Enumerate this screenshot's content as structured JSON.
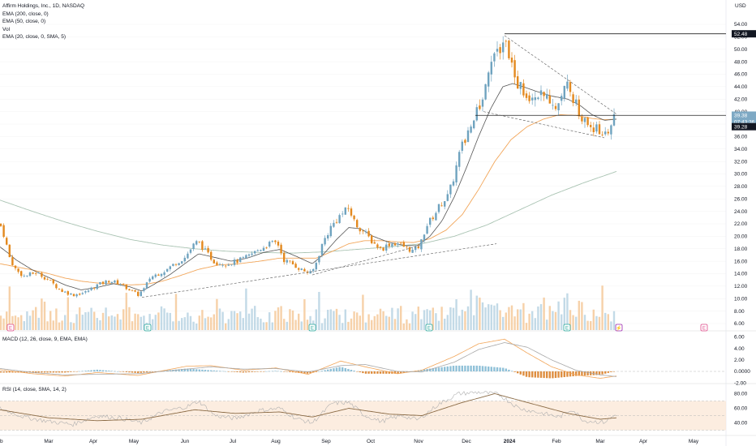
{
  "header": {
    "title": "Affirm Holdings, Inc., 1D, NASDAQ",
    "currency": "USD",
    "indicators": [
      "EMA (200, close, 0)",
      "EMA (50, close, 0)",
      "Vol",
      "EMA (20, close, 0, SMA, 5)"
    ]
  },
  "panes": {
    "macd_label": "MACD (12, 26, close, 9, EMA, EMA)",
    "rsi_label": "RSI (14, close, SMA, 14, 2)"
  },
  "price_tags": {
    "last": "39.38",
    "countdown": "07:43:36",
    "secondary": "39.28",
    "line": "52.48"
  },
  "colors": {
    "up": "#6fa3bf",
    "down": "#e3891f",
    "ema20": "#555555",
    "ema50": "#f2a65a",
    "ema200": "#a9c3b2",
    "rsi_band": "#fbe7d6",
    "rsi_line": "#b0b0b0",
    "rsi_ma": "#8a6a44",
    "macd_line": "#f2a65a",
    "macd_signal": "#a8a8a8"
  },
  "chart_data": {
    "type": "candlestick",
    "title": "Affirm Holdings, Inc., 1D, NASDAQ",
    "y_ticks": [
      "54.00",
      "52.00",
      "50.00",
      "48.00",
      "46.00",
      "44.00",
      "42.00",
      "40.00",
      "38.00",
      "36.00",
      "34.00",
      "32.00",
      "30.00",
      "28.00",
      "26.00",
      "24.00",
      "22.00",
      "20.00",
      "18.00",
      "16.00",
      "14.00",
      "12.00",
      "10.00",
      "8.00",
      "6.00"
    ],
    "macd_ticks": [
      "6.00",
      "4.00",
      "2.00",
      "0.0000",
      "-2.00"
    ],
    "rsi_ticks": [
      "80.00",
      "60.00",
      "40.00"
    ],
    "x_ticks": [
      "Feb",
      "Mar",
      "Apr",
      "May",
      "Jun",
      "Jul",
      "Aug",
      "Sep",
      "Oct",
      "Nov",
      "Dec",
      "2024",
      "Feb",
      "Mar",
      "Apr",
      "May"
    ],
    "ylim": [
      4.5,
      55
    ],
    "price_anchors": [
      {
        "x": 0,
        "p": 22.0
      },
      {
        "x": 5,
        "p": 20.2
      },
      {
        "x": 12,
        "p": 16.5
      },
      {
        "x": 20,
        "p": 14.5
      },
      {
        "x": 30,
        "p": 13.6
      },
      {
        "x": 45,
        "p": 14.2
      },
      {
        "x": 60,
        "p": 13.0
      },
      {
        "x": 75,
        "p": 11.3
      },
      {
        "x": 90,
        "p": 10.6
      },
      {
        "x": 105,
        "p": 11.0
      },
      {
        "x": 120,
        "p": 12.2
      },
      {
        "x": 135,
        "p": 12.9
      },
      {
        "x": 150,
        "p": 12.3
      },
      {
        "x": 160,
        "p": 11.4
      },
      {
        "x": 170,
        "p": 10.6
      },
      {
        "x": 178,
        "p": 11.6
      },
      {
        "x": 185,
        "p": 13.4
      },
      {
        "x": 195,
        "p": 14.0
      },
      {
        "x": 205,
        "p": 14.6
      },
      {
        "x": 215,
        "p": 15.6
      },
      {
        "x": 228,
        "p": 16.6
      },
      {
        "x": 238,
        "p": 18.5
      },
      {
        "x": 244,
        "p": 19.2
      },
      {
        "x": 255,
        "p": 17.3
      },
      {
        "x": 265,
        "p": 15.8
      },
      {
        "x": 280,
        "p": 15.6
      },
      {
        "x": 292,
        "p": 16.0
      },
      {
        "x": 305,
        "p": 16.7
      },
      {
        "x": 318,
        "p": 17.8
      },
      {
        "x": 332,
        "p": 18.8
      },
      {
        "x": 342,
        "p": 19.0
      },
      {
        "x": 350,
        "p": 16.2
      },
      {
        "x": 360,
        "p": 15.6
      },
      {
        "x": 372,
        "p": 14.6
      },
      {
        "x": 384,
        "p": 14.0
      },
      {
        "x": 390,
        "p": 15.8
      },
      {
        "x": 398,
        "p": 19.0
      },
      {
        "x": 408,
        "p": 21.5
      },
      {
        "x": 418,
        "p": 23.2
      },
      {
        "x": 430,
        "p": 24.5
      },
      {
        "x": 438,
        "p": 22.0
      },
      {
        "x": 448,
        "p": 20.8
      },
      {
        "x": 460,
        "p": 19.0
      },
      {
        "x": 470,
        "p": 17.9
      },
      {
        "x": 480,
        "p": 18.8
      },
      {
        "x": 490,
        "p": 18.9
      },
      {
        "x": 500,
        "p": 18.2
      },
      {
        "x": 510,
        "p": 17.6
      },
      {
        "x": 518,
        "p": 18.6
      },
      {
        "x": 525,
        "p": 21.5
      },
      {
        "x": 535,
        "p": 23.4
      },
      {
        "x": 545,
        "p": 25.5
      },
      {
        "x": 553,
        "p": 26.5
      },
      {
        "x": 560,
        "p": 29.8
      },
      {
        "x": 567,
        "p": 33.5
      },
      {
        "x": 573,
        "p": 35.5
      },
      {
        "x": 580,
        "p": 37.8
      },
      {
        "x": 586,
        "p": 40.0
      },
      {
        "x": 592,
        "p": 40.0
      },
      {
        "x": 598,
        "p": 44.0
      },
      {
        "x": 604,
        "p": 48.5
      },
      {
        "x": 610,
        "p": 49.8
      },
      {
        "x": 616,
        "p": 50.5
      },
      {
        "x": 622,
        "p": 51.5
      },
      {
        "x": 628,
        "p": 49.5
      },
      {
        "x": 634,
        "p": 45.5
      },
      {
        "x": 640,
        "p": 44.2
      },
      {
        "x": 648,
        "p": 43.0
      },
      {
        "x": 655,
        "p": 42.5
      },
      {
        "x": 662,
        "p": 43.5
      },
      {
        "x": 670,
        "p": 41.8
      },
      {
        "x": 678,
        "p": 42.3
      },
      {
        "x": 686,
        "p": 40.5
      },
      {
        "x": 694,
        "p": 43.5
      },
      {
        "x": 700,
        "p": 46.0
      },
      {
        "x": 706,
        "p": 42.5
      },
      {
        "x": 712,
        "p": 40.5
      },
      {
        "x": 720,
        "p": 38.5
      },
      {
        "x": 728,
        "p": 37.8
      },
      {
        "x": 736,
        "p": 37.0
      },
      {
        "x": 744,
        "p": 36.5
      },
      {
        "x": 752,
        "p": 37.5
      },
      {
        "x": 760,
        "p": 39.38
      }
    ],
    "ema20_anchors": [
      {
        "x": 0,
        "p": 18.3
      },
      {
        "x": 10,
        "p": 17.3
      },
      {
        "x": 20,
        "p": 16.2
      },
      {
        "x": 40,
        "p": 14.6
      },
      {
        "x": 60,
        "p": 13.4
      },
      {
        "x": 80,
        "p": 12.2
      },
      {
        "x": 100,
        "p": 11.4
      },
      {
        "x": 120,
        "p": 11.8
      },
      {
        "x": 140,
        "p": 12.4
      },
      {
        "x": 160,
        "p": 11.9
      },
      {
        "x": 175,
        "p": 11.2
      },
      {
        "x": 190,
        "p": 12.3
      },
      {
        "x": 210,
        "p": 13.9
      },
      {
        "x": 230,
        "p": 15.8
      },
      {
        "x": 245,
        "p": 17.2
      },
      {
        "x": 265,
        "p": 16.6
      },
      {
        "x": 285,
        "p": 16.0
      },
      {
        "x": 305,
        "p": 16.5
      },
      {
        "x": 325,
        "p": 17.4
      },
      {
        "x": 345,
        "p": 17.9
      },
      {
        "x": 365,
        "p": 16.8
      },
      {
        "x": 385,
        "p": 15.6
      },
      {
        "x": 398,
        "p": 17.0
      },
      {
        "x": 415,
        "p": 19.5
      },
      {
        "x": 430,
        "p": 21.4
      },
      {
        "x": 445,
        "p": 21.2
      },
      {
        "x": 460,
        "p": 20.0
      },
      {
        "x": 480,
        "p": 19.0
      },
      {
        "x": 500,
        "p": 18.5
      },
      {
        "x": 515,
        "p": 18.5
      },
      {
        "x": 530,
        "p": 20.0
      },
      {
        "x": 545,
        "p": 22.5
      },
      {
        "x": 560,
        "p": 26.3
      },
      {
        "x": 575,
        "p": 31.0
      },
      {
        "x": 590,
        "p": 36.0
      },
      {
        "x": 605,
        "p": 40.5
      },
      {
        "x": 620,
        "p": 44.0
      },
      {
        "x": 632,
        "p": 44.5
      },
      {
        "x": 645,
        "p": 44.0
      },
      {
        "x": 660,
        "p": 43.3
      },
      {
        "x": 680,
        "p": 42.5
      },
      {
        "x": 700,
        "p": 42.0
      },
      {
        "x": 715,
        "p": 41.0
      },
      {
        "x": 730,
        "p": 39.5
      },
      {
        "x": 745,
        "p": 38.6
      },
      {
        "x": 760,
        "p": 38.8
      }
    ],
    "ema50_anchors": [
      {
        "x": 0,
        "p": 15.6
      },
      {
        "x": 20,
        "p": 15.1
      },
      {
        "x": 40,
        "p": 14.6
      },
      {
        "x": 60,
        "p": 14.0
      },
      {
        "x": 80,
        "p": 13.3
      },
      {
        "x": 100,
        "p": 12.8
      },
      {
        "x": 120,
        "p": 12.5
      },
      {
        "x": 140,
        "p": 12.4
      },
      {
        "x": 160,
        "p": 12.2
      },
      {
        "x": 180,
        "p": 12.3
      },
      {
        "x": 200,
        "p": 12.8
      },
      {
        "x": 220,
        "p": 13.6
      },
      {
        "x": 245,
        "p": 14.7
      },
      {
        "x": 270,
        "p": 15.4
      },
      {
        "x": 295,
        "p": 15.6
      },
      {
        "x": 320,
        "p": 16.0
      },
      {
        "x": 345,
        "p": 16.5
      },
      {
        "x": 370,
        "p": 16.5
      },
      {
        "x": 390,
        "p": 16.5
      },
      {
        "x": 410,
        "p": 17.6
      },
      {
        "x": 430,
        "p": 18.8
      },
      {
        "x": 450,
        "p": 19.3
      },
      {
        "x": 470,
        "p": 19.3
      },
      {
        "x": 490,
        "p": 19.1
      },
      {
        "x": 510,
        "p": 19.0
      },
      {
        "x": 530,
        "p": 19.6
      },
      {
        "x": 550,
        "p": 21.0
      },
      {
        "x": 570,
        "p": 23.5
      },
      {
        "x": 590,
        "p": 27.5
      },
      {
        "x": 610,
        "p": 32.0
      },
      {
        "x": 630,
        "p": 35.5
      },
      {
        "x": 650,
        "p": 37.6
      },
      {
        "x": 670,
        "p": 38.8
      },
      {
        "x": 690,
        "p": 39.5
      },
      {
        "x": 710,
        "p": 39.4
      },
      {
        "x": 730,
        "p": 38.9
      },
      {
        "x": 745,
        "p": 38.7
      },
      {
        "x": 760,
        "p": 38.8
      }
    ],
    "ema200_anchors": [
      {
        "x": 0,
        "p": 25.8
      },
      {
        "x": 40,
        "p": 24.0
      },
      {
        "x": 80,
        "p": 22.3
      },
      {
        "x": 120,
        "p": 20.8
      },
      {
        "x": 160,
        "p": 19.5
      },
      {
        "x": 200,
        "p": 18.6
      },
      {
        "x": 240,
        "p": 18.0
      },
      {
        "x": 280,
        "p": 17.6
      },
      {
        "x": 320,
        "p": 17.4
      },
      {
        "x": 360,
        "p": 17.3
      },
      {
        "x": 400,
        "p": 17.5
      },
      {
        "x": 440,
        "p": 17.9
      },
      {
        "x": 480,
        "p": 18.3
      },
      {
        "x": 520,
        "p": 18.8
      },
      {
        "x": 560,
        "p": 20.0
      },
      {
        "x": 600,
        "p": 21.8
      },
      {
        "x": 640,
        "p": 24.2
      },
      {
        "x": 680,
        "p": 26.6
      },
      {
        "x": 720,
        "p": 28.6
      },
      {
        "x": 760,
        "p": 30.4
      }
    ],
    "trendlines": [
      {
        "from": {
          "x": 175,
          "p": 10.2
        },
        "to": {
          "x": 612,
          "p": 18.8
        },
        "dash": true
      },
      {
        "from": {
          "x": 385,
          "p": 13.8
        },
        "to": {
          "x": 520,
          "p": 18.6
        },
        "dash": true
      },
      {
        "from": {
          "x": 622,
          "p": 52.2
        },
        "to": {
          "x": 760,
          "p": 39.6
        },
        "dash": true
      },
      {
        "from": {
          "x": 596,
          "p": 40.0
        },
        "to": {
          "x": 745,
          "p": 35.8
        },
        "dash": true
      },
      {
        "from": {
          "x": 586,
          "p": 39.4
        },
        "to": {
          "x": 895,
          "p": 39.4
        },
        "dash": false
      },
      {
        "from": {
          "x": 622,
          "p": 52.48
        },
        "to": {
          "x": 895,
          "p": 52.48
        },
        "dash": false
      }
    ],
    "earnings_markers": [
      {
        "x": 13,
        "label": "E",
        "color": "#e04b8b"
      },
      {
        "x": 182,
        "label": "E",
        "color": "#26a69a"
      },
      {
        "x": 385,
        "label": "E",
        "color": "#26a69a"
      },
      {
        "x": 529,
        "label": "E",
        "color": "#26a69a"
      },
      {
        "x": 699,
        "label": "E",
        "color": "#26a69a"
      },
      {
        "x": 763,
        "label": "⚡",
        "color": "#9c27b0"
      },
      {
        "x": 868,
        "label": "E",
        "color": "#e04b8b"
      }
    ],
    "macd_anchors": [
      {
        "x": 0,
        "m": 0.3,
        "s": 0.5
      },
      {
        "x": 40,
        "m": -0.4,
        "s": -0.2
      },
      {
        "x": 80,
        "m": -0.8,
        "s": -0.6
      },
      {
        "x": 120,
        "m": -0.2,
        "s": -0.5
      },
      {
        "x": 170,
        "m": -0.7,
        "s": -0.4
      },
      {
        "x": 230,
        "m": 0.9,
        "s": 0.4
      },
      {
        "x": 260,
        "m": 1.0,
        "s": 0.8
      },
      {
        "x": 300,
        "m": 0.2,
        "s": 0.4
      },
      {
        "x": 340,
        "m": 0.6,
        "s": 0.5
      },
      {
        "x": 380,
        "m": -0.5,
        "s": -0.1
      },
      {
        "x": 420,
        "m": 1.8,
        "s": 1.0
      },
      {
        "x": 450,
        "m": 0.8,
        "s": 1.2
      },
      {
        "x": 490,
        "m": -0.4,
        "s": 0.0
      },
      {
        "x": 520,
        "m": 0.2,
        "s": -0.1
      },
      {
        "x": 560,
        "m": 2.6,
        "s": 1.6
      },
      {
        "x": 590,
        "m": 4.8,
        "s": 3.8
      },
      {
        "x": 622,
        "m": 5.6,
        "s": 5.0
      },
      {
        "x": 650,
        "m": 3.2,
        "s": 4.2
      },
      {
        "x": 680,
        "m": 0.8,
        "s": 2.0
      },
      {
        "x": 710,
        "m": -0.6,
        "s": 0.2
      },
      {
        "x": 740,
        "m": -1.2,
        "s": -0.6
      },
      {
        "x": 760,
        "m": -0.8,
        "s": -0.9
      }
    ],
    "rsi_anchors": [
      {
        "x": 0,
        "r": 60
      },
      {
        "x": 30,
        "r": 48
      },
      {
        "x": 60,
        "r": 42
      },
      {
        "x": 90,
        "r": 38
      },
      {
        "x": 120,
        "r": 50
      },
      {
        "x": 150,
        "r": 46
      },
      {
        "x": 175,
        "r": 40
      },
      {
        "x": 200,
        "r": 55
      },
      {
        "x": 230,
        "r": 62
      },
      {
        "x": 245,
        "r": 70
      },
      {
        "x": 265,
        "r": 50
      },
      {
        "x": 290,
        "r": 46
      },
      {
        "x": 320,
        "r": 57
      },
      {
        "x": 345,
        "r": 60
      },
      {
        "x": 365,
        "r": 46
      },
      {
        "x": 385,
        "r": 40
      },
      {
        "x": 410,
        "r": 67
      },
      {
        "x": 430,
        "r": 68
      },
      {
        "x": 450,
        "r": 50
      },
      {
        "x": 470,
        "r": 42
      },
      {
        "x": 495,
        "r": 50
      },
      {
        "x": 515,
        "r": 44
      },
      {
        "x": 540,
        "r": 65
      },
      {
        "x": 565,
        "r": 80
      },
      {
        "x": 590,
        "r": 82
      },
      {
        "x": 615,
        "r": 79
      },
      {
        "x": 640,
        "r": 60
      },
      {
        "x": 665,
        "r": 54
      },
      {
        "x": 690,
        "r": 48
      },
      {
        "x": 705,
        "r": 59
      },
      {
        "x": 720,
        "r": 43
      },
      {
        "x": 745,
        "r": 41
      },
      {
        "x": 760,
        "r": 52
      }
    ],
    "rsi_ma_anchors": [
      {
        "x": 0,
        "r": 58
      },
      {
        "x": 60,
        "r": 47
      },
      {
        "x": 120,
        "r": 43
      },
      {
        "x": 175,
        "r": 45
      },
      {
        "x": 240,
        "r": 58
      },
      {
        "x": 290,
        "r": 53
      },
      {
        "x": 345,
        "r": 55
      },
      {
        "x": 385,
        "r": 48
      },
      {
        "x": 430,
        "r": 60
      },
      {
        "x": 480,
        "r": 52
      },
      {
        "x": 520,
        "r": 50
      },
      {
        "x": 570,
        "r": 68
      },
      {
        "x": 610,
        "r": 80
      },
      {
        "x": 650,
        "r": 68
      },
      {
        "x": 700,
        "r": 53
      },
      {
        "x": 740,
        "r": 45
      },
      {
        "x": 760,
        "r": 47
      }
    ]
  }
}
